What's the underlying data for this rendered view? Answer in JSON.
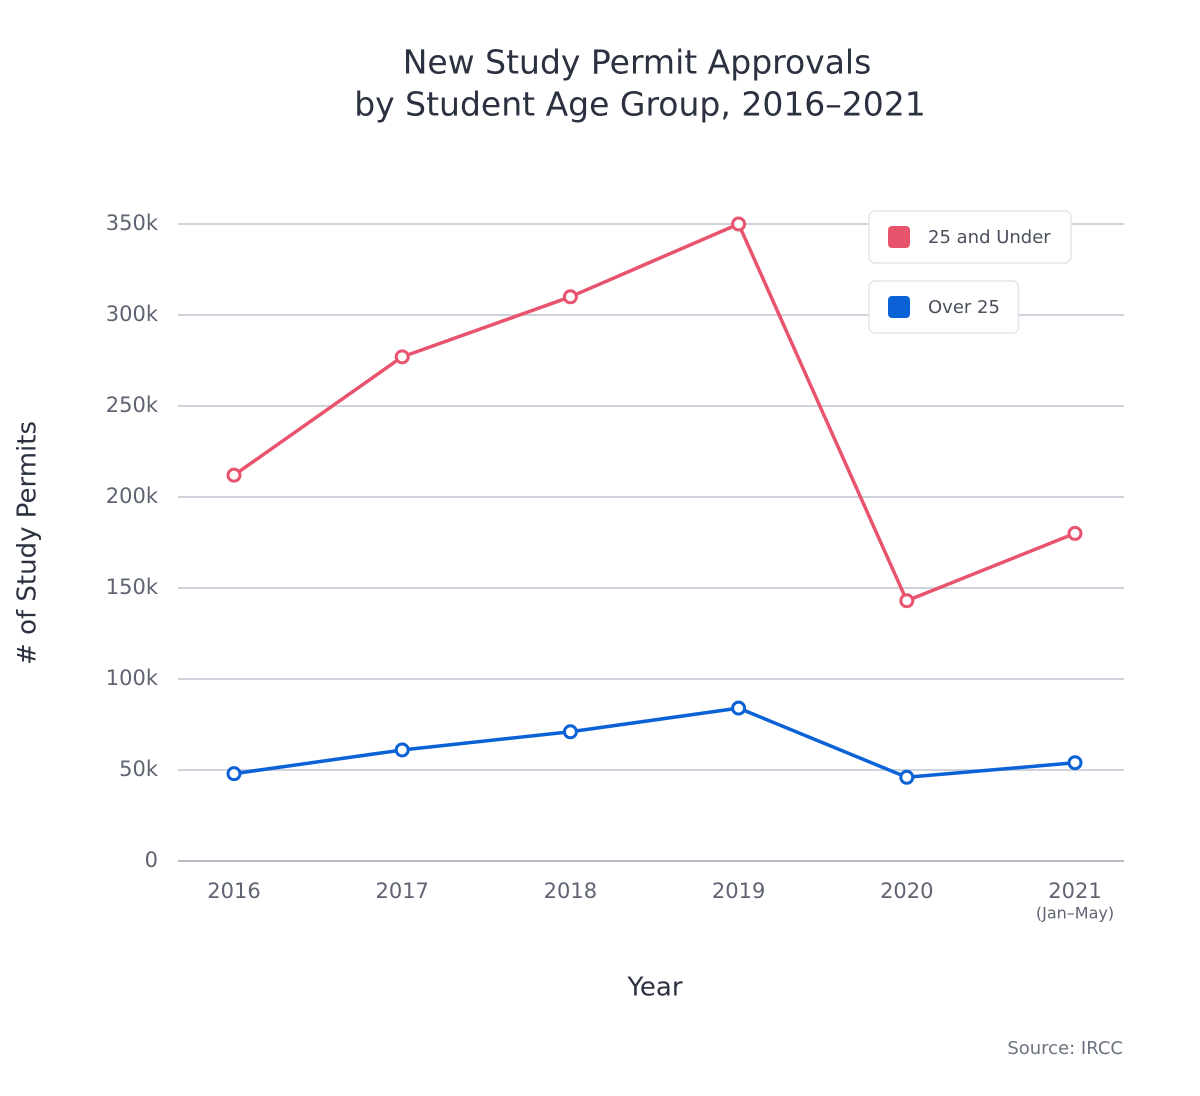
{
  "chart_data": {
    "type": "line",
    "title": "New Study Permit Approvals",
    "subtitle": "by Student Age Group, 2016–2021",
    "x_label": "Year",
    "y_label": "# of Study Permits",
    "source": "Source: IRCC",
    "categories": [
      "2016",
      "2017",
      "2018",
      "2019",
      "2020",
      "2021"
    ],
    "annotations": [
      "(Jan–May)"
    ],
    "series": [
      {
        "name": "25 and Under",
        "color": "#e8546e",
        "values": [
          212000,
          277000,
          310000,
          350000,
          143000,
          180000
        ]
      },
      {
        "name": "Over 25",
        "color": "#0b62d6",
        "values": [
          48000,
          61000,
          71000,
          84000,
          46000,
          54000
        ]
      }
    ],
    "ylim": [
      0,
      350000
    ],
    "yticks": [
      0,
      {
        "value": 50000,
        "label": "50k"
      },
      {
        "value": 100000,
        "label": "100k"
      },
      {
        "value": 150000,
        "label": "150k"
      },
      {
        "value": 200000,
        "label": "200k"
      },
      {
        "value": 250000,
        "label": "250k"
      },
      {
        "value": 300000,
        "label": "300k"
      },
      {
        "value": 350000,
        "label": "350k"
      }
    ],
    "grid": true,
    "legend": "top-right"
  }
}
